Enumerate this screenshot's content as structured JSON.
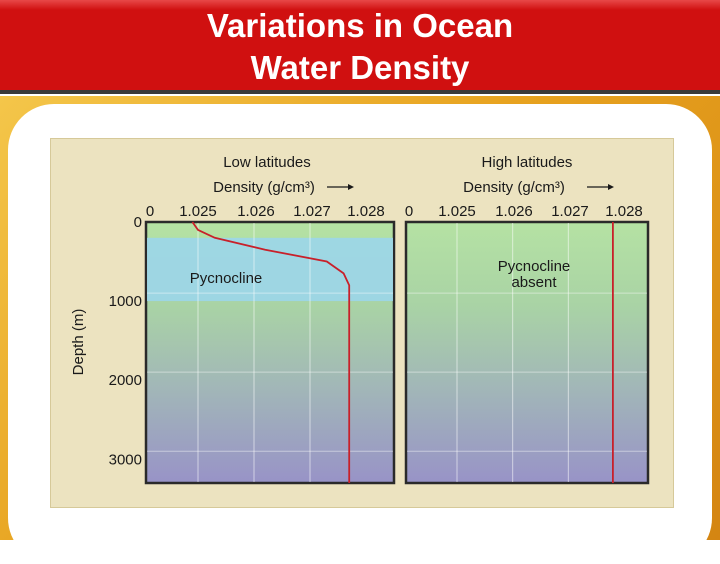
{
  "slide": {
    "title_line1": "Variations in Ocean",
    "title_line2": "Water Density"
  },
  "chart_data": [
    {
      "type": "line",
      "title": "Low latitudes",
      "xlabel": "Density (g/cm³)",
      "ylabel": "Depth (m)",
      "xlim": [
        1.024,
        1.028
      ],
      "ylim": [
        0,
        3300
      ],
      "x_ticks": [
        "0",
        "1.025",
        "1.026",
        "1.027",
        "1.028"
      ],
      "y_ticks": [
        "0",
        "1000",
        "2000",
        "3000"
      ],
      "annotation": "Pycnocline",
      "pycnocline_depth_range": [
        200,
        1000
      ],
      "series": [
        {
          "color": "#c8202a",
          "points": [
            {
              "x": 1.0249,
              "y": 0
            },
            {
              "x": 1.025,
              "y": 100
            },
            {
              "x": 1.0253,
              "y": 200
            },
            {
              "x": 1.0262,
              "y": 350
            },
            {
              "x": 1.0273,
              "y": 500
            },
            {
              "x": 1.0276,
              "y": 650
            },
            {
              "x": 1.0277,
              "y": 800
            },
            {
              "x": 1.0277,
              "y": 1000
            },
            {
              "x": 1.0277,
              "y": 3300
            }
          ]
        }
      ]
    },
    {
      "type": "line",
      "title": "High latitudes",
      "xlabel": "Density (g/cm³)",
      "xlim": [
        1.024,
        1.028
      ],
      "ylim": [
        0,
        3300
      ],
      "x_ticks": [
        "0",
        "1.025",
        "1.026",
        "1.027",
        "1.028"
      ],
      "annotation_line1": "Pycnocline",
      "annotation_line2": "absent",
      "series": [
        {
          "color": "#c8202a",
          "points": [
            {
              "x": 1.0278,
              "y": 0
            },
            {
              "x": 1.0278,
              "y": 3300
            }
          ]
        }
      ]
    }
  ]
}
